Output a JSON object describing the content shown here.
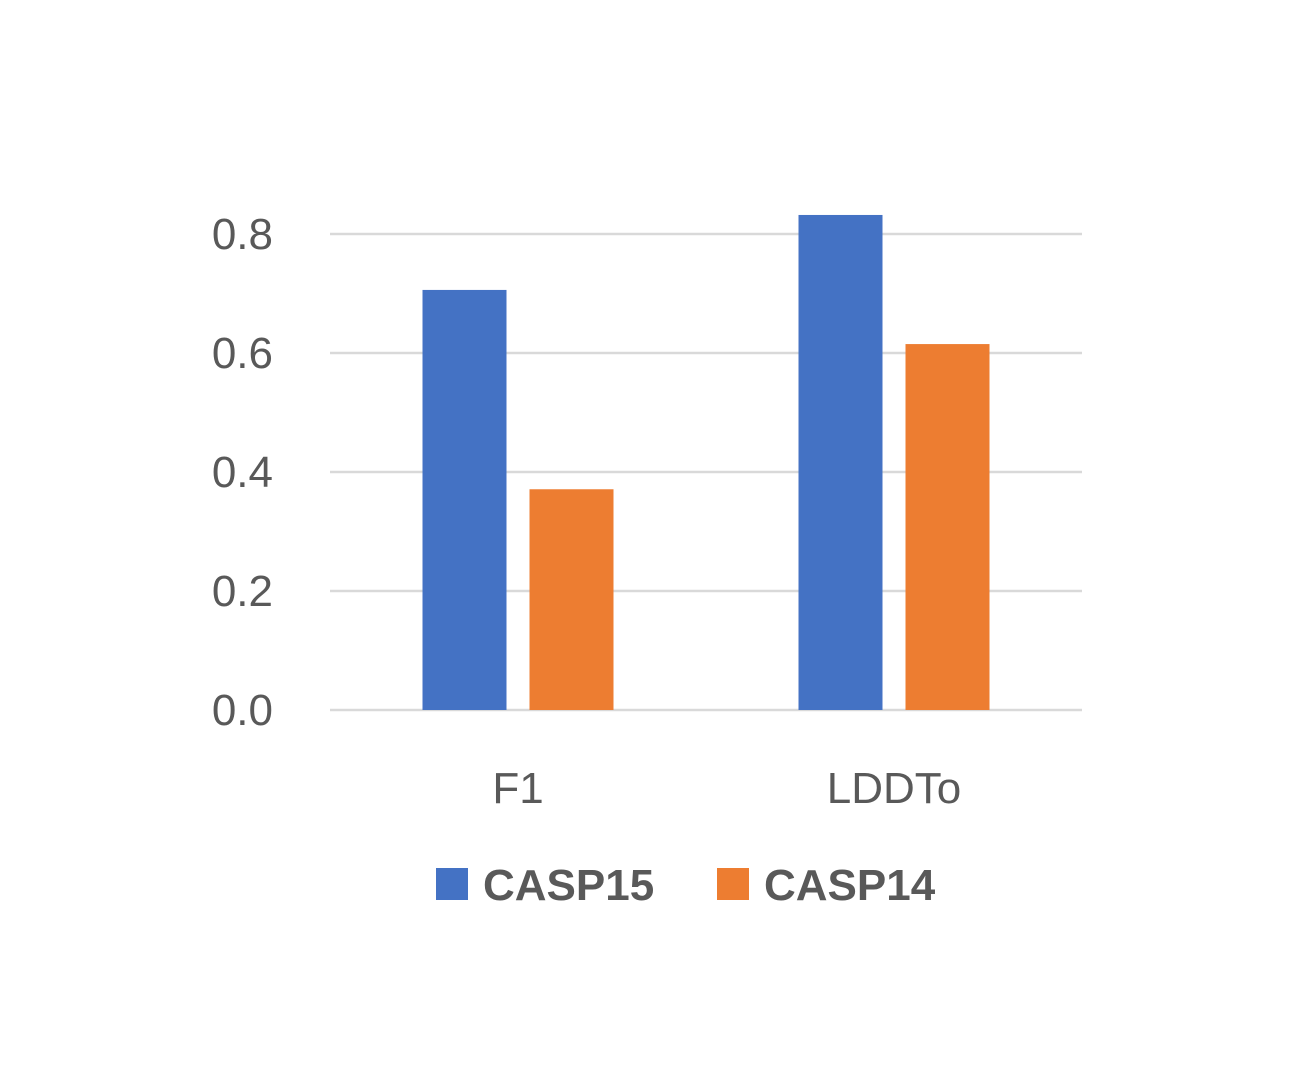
{
  "chart_data": {
    "type": "bar",
    "title": "",
    "xlabel": "",
    "ylabel": "",
    "categories": [
      "F1",
      "LDDTo"
    ],
    "series": [
      {
        "name": "CASP15",
        "values": [
          0.706,
          0.832
        ],
        "color": "#4472C4"
      },
      {
        "name": "CASP14",
        "values": [
          0.371,
          0.615
        ],
        "color": "#ED7D31"
      }
    ],
    "ylim": [
      0,
      0.8
    ],
    "yticks": [
      "0.0",
      "0.2",
      "0.4",
      "0.6",
      "0.8"
    ],
    "grid": true,
    "legend_position": "bottom"
  }
}
